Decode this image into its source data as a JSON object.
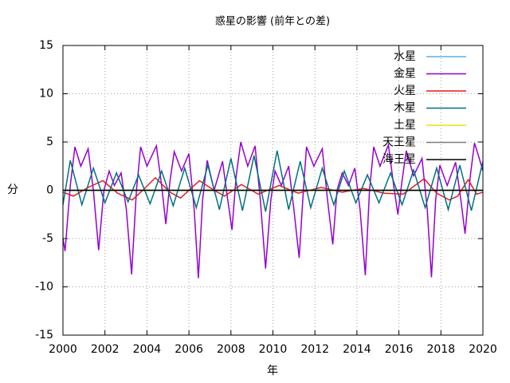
{
  "chart_data": {
    "type": "line",
    "title": "惑星の影響 (前年との差)",
    "x_label": "年",
    "y_label": "分",
    "xlim": [
      2000,
      2020
    ],
    "ylim": [
      -15,
      15
    ],
    "xticks": [
      2000,
      2002,
      2004,
      2006,
      2008,
      2010,
      2012,
      2014,
      2016,
      2018,
      2020
    ],
    "yticks": [
      -15,
      -10,
      -5,
      0,
      5,
      10,
      15
    ],
    "grid": true,
    "legend": "top-right",
    "series": [
      {
        "name": "水星",
        "color": "#56b4e9",
        "x": [
          2000,
          2005,
          2010,
          2015,
          2020
        ],
        "values": [
          0,
          0,
          0,
          0,
          0
        ]
      },
      {
        "name": "金星",
        "color": "#9400d3",
        "x": [
          2000,
          2000.1,
          2000.35,
          2000.57,
          2000.85,
          2001.2,
          2001.45,
          2001.7,
          2001.95,
          2002.2,
          2002.45,
          2002.77,
          2003.02,
          2003.27,
          2003.5,
          2003.7,
          2004.0,
          2004.45,
          2004.7,
          2004.9,
          2005.1,
          2005.3,
          2005.65,
          2006.0,
          2006.25,
          2006.45,
          2006.65,
          2006.87,
          2007.2,
          2007.6,
          2007.85,
          2008.05,
          2008.25,
          2008.47,
          2008.8,
          2009.15,
          2009.4,
          2009.65,
          2009.9,
          2010.1,
          2010.4,
          2010.75,
          2011.0,
          2011.25,
          2011.45,
          2011.6,
          2011.95,
          2012.35,
          2012.6,
          2012.85,
          2013.05,
          2013.3,
          2013.6,
          2013.9,
          2014.15,
          2014.4,
          2014.6,
          2014.8,
          2015.1,
          2015.5,
          2015.75,
          2015.95,
          2016.15,
          2016.35,
          2016.7,
          2017.1,
          2017.35,
          2017.55,
          2017.75,
          2017.95,
          2018.3,
          2018.7,
          2018.95,
          2019.15,
          2019.4,
          2019.6,
          2019.8,
          2020
        ],
        "values": [
          -5,
          -6.3,
          0.5,
          4.5,
          2.5,
          4.3,
          0,
          -6.2,
          0,
          2.0,
          0.5,
          1.8,
          -2,
          -8.7,
          0,
          4.5,
          2.5,
          4.6,
          0.5,
          -3.5,
          1,
          4.0,
          2,
          3.8,
          -2,
          -9.1,
          -1,
          3.1,
          0,
          3.0,
          -1,
          -4.1,
          1.5,
          5.0,
          2.5,
          4.6,
          -1,
          -8.1,
          -1,
          2.0,
          0.5,
          2.5,
          -2,
          -7.0,
          0,
          4.5,
          2.5,
          4.3,
          -1,
          -5.6,
          0,
          1.8,
          0.5,
          2.3,
          -2,
          -8.8,
          0,
          4.5,
          2.5,
          4.7,
          0.5,
          -2.5,
          1,
          4.1,
          1.5,
          3.3,
          -2,
          -9.0,
          -1,
          2.6,
          0.5,
          2.9,
          -1,
          -4.5,
          1.5,
          4.9,
          3.5,
          2
        ]
      },
      {
        "name": "火星",
        "color": "#e41a1c",
        "x": [
          2000,
          2000.5,
          2001.2,
          2001.9,
          2002.6,
          2003.3,
          2003.8,
          2004.4,
          2005.1,
          2005.6,
          2006.0,
          2006.5,
          2007.2,
          2007.7,
          2008.5,
          2009.3,
          2010.3,
          2011.2,
          2012.3,
          2013.3,
          2014.3,
          2015.3,
          2016.2,
          2017.2,
          2017.8,
          2018.4,
          2018.8,
          2019.3,
          2019.7,
          2020
        ],
        "values": [
          -0.2,
          -0.6,
          0.3,
          1.0,
          -0.3,
          -1.0,
          0,
          1.3,
          -0.2,
          -0.8,
          0,
          1.0,
          0,
          -0.6,
          0.6,
          -0.4,
          0.5,
          -0.3,
          0.3,
          -0.2,
          0.2,
          -0.3,
          -0.4,
          1.2,
          -0.3,
          -1.0,
          -0.6,
          1.1,
          -0.4,
          -0.2
        ]
      },
      {
        "name": "木星",
        "color": "#007080",
        "x": [
          2000,
          2000.35,
          2000.9,
          2001.45,
          2002.0,
          2002.55,
          2003.1,
          2003.6,
          2004.15,
          2004.7,
          2005.25,
          2005.8,
          2006.35,
          2006.9,
          2007.45,
          2008.0,
          2008.55,
          2009.1,
          2009.65,
          2010.2,
          2010.75,
          2011.3,
          2011.8,
          2012.35,
          2012.9,
          2013.4,
          2013.95,
          2014.5,
          2015.05,
          2015.6,
          2016.15,
          2016.7,
          2017.25,
          2017.8,
          2018.35,
          2018.9,
          2019.45,
          2020
        ],
        "values": [
          -1.5,
          3.1,
          -1.5,
          2.3,
          -1.3,
          1.8,
          -1.2,
          1.6,
          -1.4,
          2.0,
          -1.6,
          2.3,
          -1.8,
          2.6,
          -2.0,
          3.3,
          -2.1,
          3.6,
          -2.2,
          4.1,
          -2.0,
          3.0,
          -1.8,
          2.3,
          -1.5,
          2.0,
          -1.3,
          1.6,
          -1.3,
          1.8,
          -1.5,
          2.1,
          -1.8,
          2.3,
          -2.0,
          2.6,
          -2.1,
          3.0
        ]
      },
      {
        "name": "土星",
        "color": "#e6e600",
        "x": [
          2000,
          2005,
          2010,
          2015,
          2020
        ],
        "values": [
          0,
          0,
          0,
          0,
          0
        ]
      },
      {
        "name": "天王星",
        "color": "#808080",
        "x": [
          2000,
          2005,
          2010,
          2015,
          2020
        ],
        "values": [
          0,
          0,
          0,
          0,
          0
        ]
      },
      {
        "name": "海王星",
        "color": "#000000",
        "x": [
          2000,
          2005,
          2010,
          2015,
          2020
        ],
        "values": [
          0,
          0,
          0,
          0,
          0
        ]
      }
    ]
  }
}
